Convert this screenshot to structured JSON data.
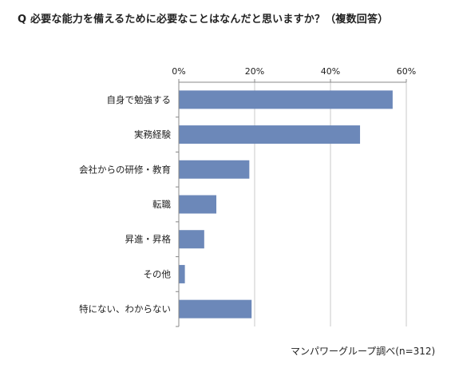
{
  "question": "Q  必要な能力を備えるために必要なことはなんだと思いますか？（複数回答）",
  "source": "マンパワーグループ調べ(n=312)",
  "chart_data": {
    "type": "bar",
    "orientation": "horizontal",
    "categories": [
      "自身で勉強する",
      "実務経験",
      "会社からの研修・教育",
      "転職",
      "昇進・昇格",
      "その他",
      "特にない、わからない"
    ],
    "values": [
      56.4,
      47.8,
      18.6,
      9.9,
      6.7,
      1.6,
      19.2
    ],
    "xlim": [
      0,
      60
    ],
    "x_ticks": [
      0,
      20,
      40,
      60
    ],
    "x_tick_labels": [
      "0%",
      "20%",
      "40%",
      "60%"
    ],
    "x_axis_position": "top",
    "grid": true,
    "bar_color": "#6c88b9",
    "grid_color": "#c8c8c8",
    "axis_color": "#888888"
  }
}
